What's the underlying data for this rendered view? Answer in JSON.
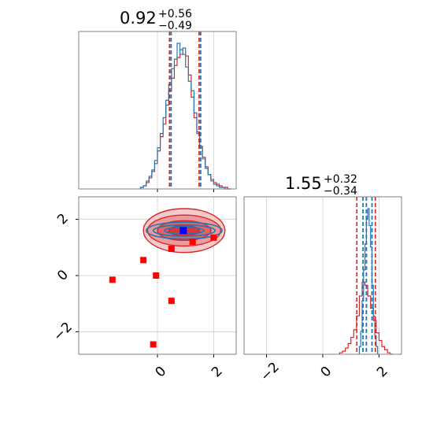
{
  "chart_data": {
    "type": "corner",
    "parameters": 2,
    "colors": {
      "red": "#d62728",
      "blue": "#1f77b4",
      "grid": "#d0d0d0",
      "marker_red": "#ff0000",
      "marker_blue": "#0000ff"
    },
    "axis_range": [
      -2.8,
      2.8
    ],
    "param1": {
      "title_value": "0.92",
      "title_plus": "+0.56",
      "title_minus": "−0.49",
      "median": 0.92,
      "lower": 0.43,
      "upper": 1.48,
      "hist_red_x": [
        -0.6,
        -0.5,
        -0.4,
        -0.3,
        -0.2,
        -0.1,
        0.0,
        0.1,
        0.2,
        0.3,
        0.4,
        0.5,
        0.6,
        0.7,
        0.8,
        0.9,
        1.0,
        1.1,
        1.2,
        1.3,
        1.4,
        1.5,
        1.6,
        1.7,
        1.8,
        1.9,
        2.0,
        2.1,
        2.2,
        2.3,
        2.4,
        2.5
      ],
      "hist_red": [
        0.01,
        0.02,
        0.04,
        0.07,
        0.11,
        0.16,
        0.24,
        0.33,
        0.41,
        0.53,
        0.62,
        0.7,
        0.78,
        0.83,
        0.88,
        0.85,
        0.84,
        0.72,
        0.58,
        0.45,
        0.36,
        0.27,
        0.2,
        0.14,
        0.09,
        0.06,
        0.04,
        0.03,
        0.02,
        0.01,
        0.01,
        0.0
      ],
      "hist_blue": [
        0.01,
        0.02,
        0.05,
        0.08,
        0.12,
        0.18,
        0.26,
        0.35,
        0.45,
        0.56,
        0.66,
        0.76,
        0.82,
        0.92,
        0.85,
        0.89,
        0.77,
        0.68,
        0.62,
        0.48,
        0.35,
        0.26,
        0.19,
        0.13,
        0.09,
        0.05,
        0.03,
        0.02,
        0.01,
        0.01,
        0.0,
        0.0
      ],
      "xticks": [
        0,
        2
      ]
    },
    "param2": {
      "title_value": "1.55",
      "title_plus": "+0.32",
      "title_minus": "−0.34",
      "median": 1.55,
      "lower": 1.21,
      "upper": 1.87,
      "blue_lines": [
        1.43,
        1.55,
        1.75
      ],
      "hist_red_x": [
        0.6,
        0.7,
        0.8,
        0.9,
        1.0,
        1.1,
        1.2,
        1.3,
        1.4,
        1.5,
        1.6,
        1.7,
        1.8,
        1.9,
        2.0,
        2.1,
        2.2,
        2.3,
        2.4
      ],
      "hist_red": [
        0.01,
        0.02,
        0.04,
        0.07,
        0.11,
        0.16,
        0.25,
        0.38,
        0.47,
        0.45,
        0.38,
        0.3,
        0.22,
        0.14,
        0.09,
        0.05,
        0.03,
        0.01,
        0.0
      ],
      "hist_blue_x": [
        1.3,
        1.35,
        1.4,
        1.45,
        1.5,
        1.55,
        1.6,
        1.65,
        1.7,
        1.75,
        1.8,
        1.85,
        1.9,
        1.95
      ],
      "hist_blue": [
        0.05,
        0.15,
        0.35,
        0.55,
        0.72,
        0.88,
        0.95,
        0.84,
        0.7,
        0.45,
        0.25,
        0.12,
        0.05,
        0.0
      ],
      "xticks": [
        -2,
        0,
        2
      ]
    },
    "joint": {
      "yticks": [
        -2,
        0,
        2
      ],
      "xticks": [
        0,
        2
      ],
      "red_points": [
        {
          "x": -1.6,
          "y": -0.15
        },
        {
          "x": -0.5,
          "y": 0.55
        },
        {
          "x": -0.05,
          "y": 0.0
        },
        {
          "x": 0.5,
          "y": 0.95
        },
        {
          "x": 0.5,
          "y": -0.9
        },
        {
          "x": 1.25,
          "y": 1.2
        },
        {
          "x": 2.0,
          "y": 1.35
        },
        {
          "x": -0.15,
          "y": -2.45
        }
      ],
      "blue_point": {
        "x": 0.92,
        "y": 1.6
      },
      "contour_center": {
        "x": 0.95,
        "y": 1.6
      },
      "contour_red_sigmas": [
        [
          0.55,
          0.18
        ],
        [
          0.95,
          0.35
        ],
        [
          1.3,
          0.55
        ],
        [
          1.45,
          0.78
        ]
      ],
      "contour_blue_sigmas": [
        [
          0.7,
          0.12
        ],
        [
          1.1,
          0.2
        ],
        [
          1.35,
          0.3
        ]
      ]
    }
  }
}
